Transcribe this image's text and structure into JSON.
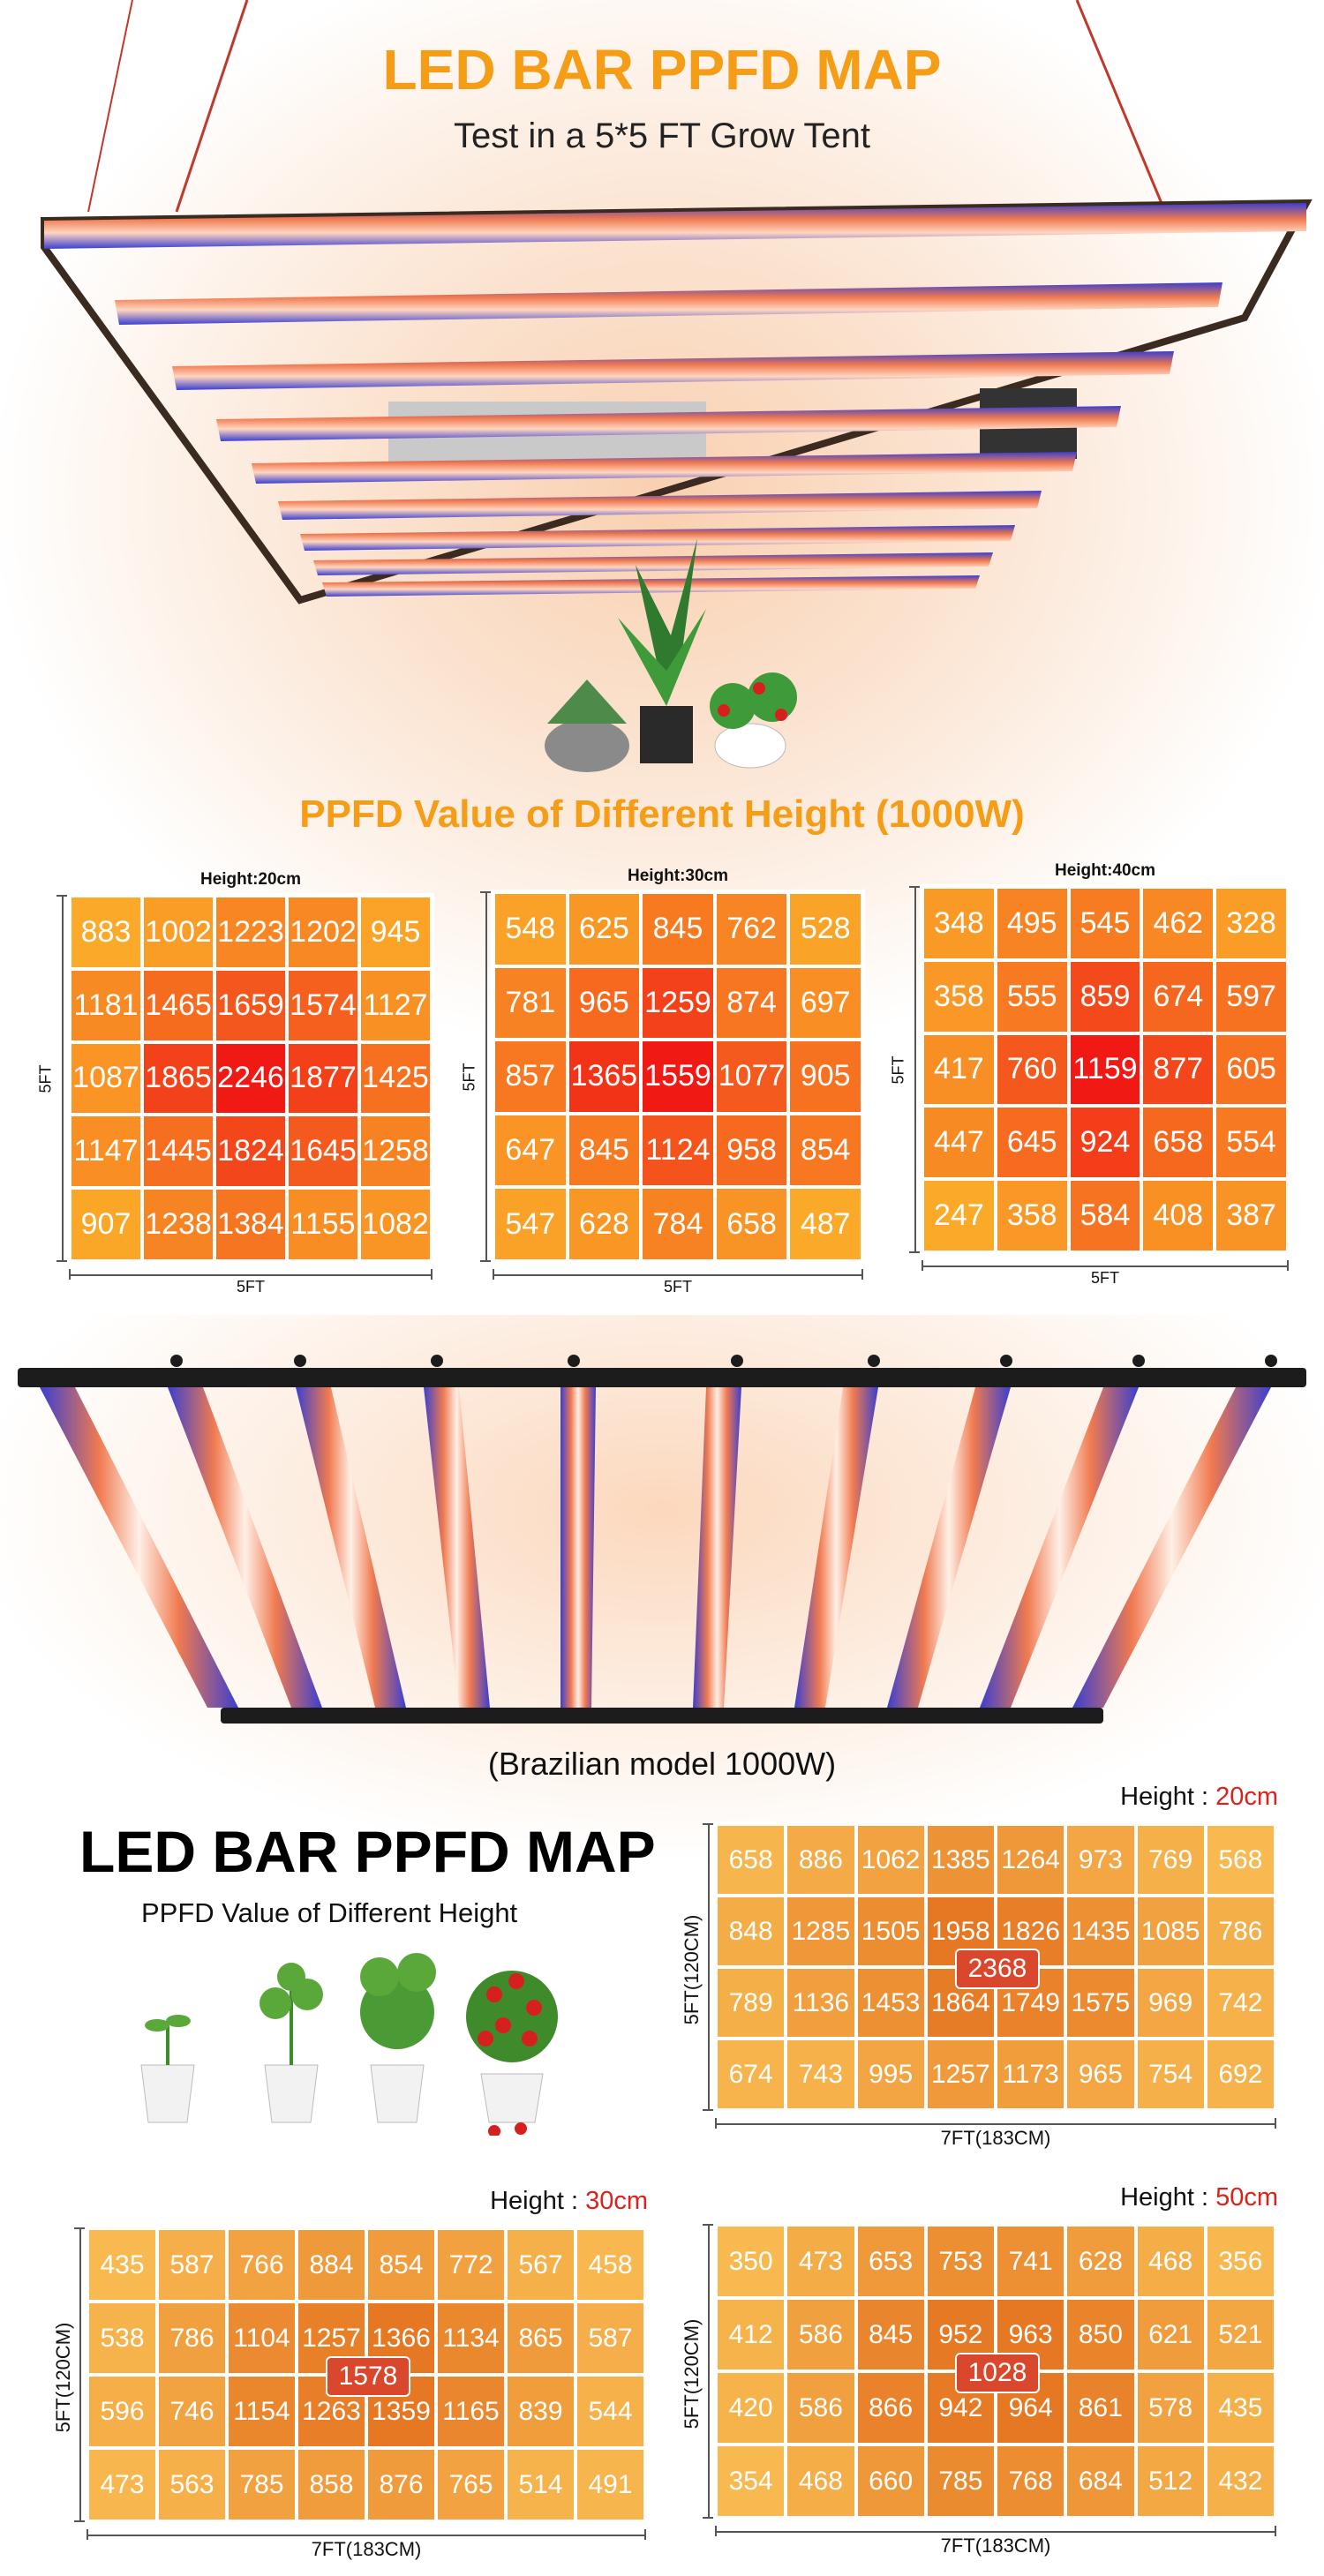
{
  "top": {
    "title": "LED BAR PPFD MAP",
    "subtitle": "Test in a 5*5 FT Grow Tent",
    "section_title": "PPFD Value of Different Height (1000W)"
  },
  "heatmaps_top": [
    {
      "label": "Height:20cm",
      "side_label": "5FT",
      "bottom_label": "5FT",
      "rows": [
        [
          "883",
          "1002",
          "1223",
          "1202",
          "945"
        ],
        [
          "1181",
          "1465",
          "1659",
          "1574",
          "1127"
        ],
        [
          "1087",
          "1865",
          "2246",
          "1877",
          "1425"
        ],
        [
          "1147",
          "1445",
          "1824",
          "1645",
          "1258"
        ],
        [
          "907",
          "1238",
          "1384",
          "1155",
          "1082"
        ]
      ]
    },
    {
      "label": "Height:30cm",
      "side_label": "5FT",
      "bottom_label": "5FT",
      "rows": [
        [
          "548",
          "625",
          "845",
          "762",
          "528"
        ],
        [
          "781",
          "965",
          "1259",
          "874",
          "697"
        ],
        [
          "857",
          "1365",
          "1559",
          "1077",
          "905"
        ],
        [
          "647",
          "845",
          "1124",
          "958",
          "854"
        ],
        [
          "547",
          "628",
          "784",
          "658",
          "487"
        ]
      ]
    },
    {
      "label": "Height:40cm",
      "side_label": "5FT",
      "bottom_label": "5FT",
      "rows": [
        [
          "348",
          "495",
          "545",
          "462",
          "328"
        ],
        [
          "358",
          "555",
          "859",
          "674",
          "597"
        ],
        [
          "417",
          "760",
          "1159",
          "877",
          "605"
        ],
        [
          "447",
          "645",
          "924",
          "658",
          "554"
        ],
        [
          "247",
          "358",
          "584",
          "408",
          "387"
        ]
      ]
    }
  ],
  "bottom": {
    "model_caption": "(Brazilian model 1000W)",
    "title": "LED BAR PPFD MAP",
    "subtitle": "PPFD Value of Different Height"
  },
  "heatmaps_bottom": [
    {
      "label_prefix": "Height : ",
      "label_value": "20cm",
      "side_label": "5FT(120CM)",
      "bottom_label": "7FT(183CM)",
      "center_value": "2368",
      "rows": [
        [
          "658",
          "886",
          "1062",
          "1385",
          "1264",
          "973",
          "769",
          "568"
        ],
        [
          "848",
          "1285",
          "1505",
          "1958",
          "1826",
          "1435",
          "1085",
          "786"
        ],
        [
          "789",
          "1136",
          "1453",
          "1864",
          "1749",
          "1575",
          "969",
          "742"
        ],
        [
          "674",
          "743",
          "995",
          "1257",
          "1173",
          "965",
          "754",
          "692"
        ]
      ]
    },
    {
      "label_prefix": "Height : ",
      "label_value": "30cm",
      "side_label": "5FT(120CM)",
      "bottom_label": "7FT(183CM)",
      "center_value": "1578",
      "rows": [
        [
          "435",
          "587",
          "766",
          "884",
          "854",
          "772",
          "567",
          "458"
        ],
        [
          "538",
          "786",
          "1104",
          "1257",
          "1366",
          "1134",
          "865",
          "587"
        ],
        [
          "596",
          "746",
          "1154",
          "1263",
          "1359",
          "1165",
          "839",
          "544"
        ],
        [
          "473",
          "563",
          "785",
          "858",
          "876",
          "765",
          "514",
          "491"
        ]
      ]
    },
    {
      "label_prefix": "Height : ",
      "label_value": "50cm",
      "side_label": "5FT(120CM)",
      "bottom_label": "7FT(183CM)",
      "center_value": "1028",
      "rows": [
        [
          "350",
          "473",
          "653",
          "753",
          "741",
          "628",
          "468",
          "356"
        ],
        [
          "412",
          "586",
          "845",
          "952",
          "963",
          "850",
          "621",
          "521"
        ],
        [
          "420",
          "586",
          "866",
          "942",
          "964",
          "861",
          "578",
          "435"
        ],
        [
          "354",
          "468",
          "660",
          "785",
          "768",
          "684",
          "512",
          "432"
        ]
      ]
    }
  ],
  "colors": {
    "title_orange": "#f59d16",
    "height_red": "#e0201a",
    "badge_red": "#d9482c"
  }
}
